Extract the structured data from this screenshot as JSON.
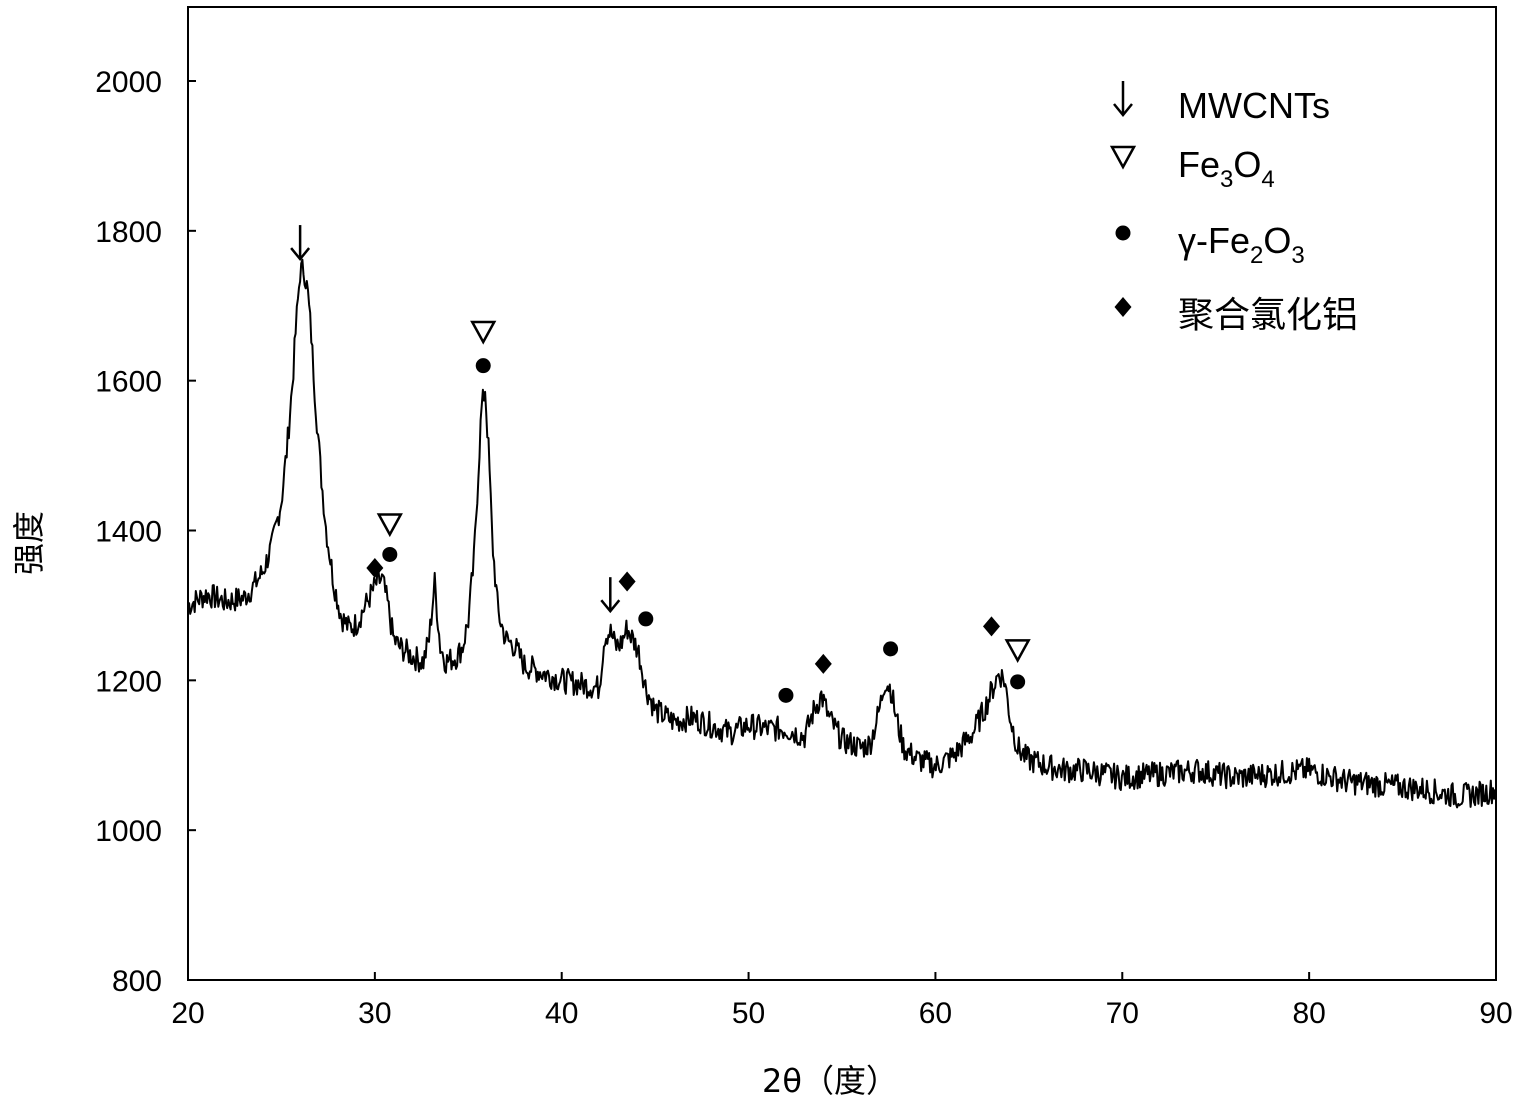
{
  "chart_data": {
    "type": "line",
    "title": "",
    "xlabel": "2θ（度）",
    "ylabel": "强度",
    "xlim": [
      20,
      90
    ],
    "ylim": [
      800,
      2100
    ],
    "xticks": [
      20,
      30,
      40,
      50,
      60,
      70,
      80,
      90
    ],
    "yticks": [
      800,
      1000,
      1200,
      1400,
      1600,
      1800,
      2000
    ],
    "grid": false,
    "legend_position": "top-right",
    "legend": [
      {
        "symbol": "arrow",
        "glyph": "↓",
        "label": "MWCNTs",
        "label_parts": []
      },
      {
        "symbol": "triangle",
        "glyph": "▽",
        "label": "Fe3O4",
        "label_parts": [
          "Fe",
          "3",
          "O",
          "4"
        ]
      },
      {
        "symbol": "circle",
        "glyph": "●",
        "label": "γ-Fe2O3",
        "label_parts": [
          "γ-Fe",
          "2",
          "O",
          "3"
        ]
      },
      {
        "symbol": "diamond",
        "glyph": "◆",
        "label": "聚合氯化铝",
        "label_parts": []
      }
    ],
    "series": [
      {
        "name": "",
        "color": "#000000",
        "x": [
          20,
          21,
          22,
          23,
          23.5,
          24,
          24.5,
          25,
          25.3,
          25.6,
          25.8,
          26,
          26.2,
          26.4,
          26.6,
          26.8,
          27.1,
          27.4,
          27.8,
          28.2,
          28.6,
          29,
          29.4,
          29.8,
          30.1,
          30.4,
          30.7,
          31,
          31.3,
          31.6,
          32,
          32.3,
          32.6,
          32.9,
          33.2,
          33.5,
          33.8,
          34.1,
          34.4,
          34.7,
          35,
          35.3,
          35.5,
          35.7,
          35.9,
          36.1,
          36.3,
          36.6,
          37,
          37.5,
          38,
          39,
          40,
          41,
          42,
          42.3,
          42.6,
          42.9,
          43.2,
          43.5,
          43.8,
          44.1,
          44.5,
          45,
          46,
          47,
          48,
          49,
          50,
          51,
          52,
          53,
          53.5,
          53.9,
          54.3,
          55,
          56,
          56.5,
          57,
          57.3,
          57.6,
          57.9,
          58.3,
          59,
          60,
          61,
          62,
          62.6,
          63,
          63.4,
          63.7,
          64,
          64.4,
          64.9,
          65.5,
          66,
          67,
          68,
          69,
          70,
          72,
          74,
          76,
          78,
          80,
          82,
          84,
          86,
          88,
          89.5,
          90
        ],
        "y": [
          1300,
          1315,
          1305,
          1310,
          1325,
          1345,
          1380,
          1440,
          1510,
          1600,
          1680,
          1745,
          1750,
          1720,
          1660,
          1580,
          1480,
          1400,
          1330,
          1285,
          1270,
          1275,
          1295,
          1315,
          1330,
          1335,
          1300,
          1255,
          1245,
          1240,
          1232,
          1228,
          1225,
          1255,
          1330,
          1245,
          1225,
          1228,
          1232,
          1245,
          1280,
          1360,
          1460,
          1560,
          1590,
          1500,
          1380,
          1290,
          1255,
          1245,
          1220,
          1210,
          1200,
          1195,
          1190,
          1260,
          1265,
          1245,
          1250,
          1270,
          1255,
          1240,
          1190,
          1160,
          1145,
          1150,
          1140,
          1130,
          1140,
          1135,
          1135,
          1125,
          1160,
          1180,
          1150,
          1120,
          1110,
          1115,
          1160,
          1200,
          1190,
          1150,
          1110,
          1095,
          1085,
          1100,
          1130,
          1160,
          1185,
          1210,
          1200,
          1150,
          1110,
          1095,
          1090,
          1085,
          1080,
          1080,
          1075,
          1070,
          1075,
          1080,
          1070,
          1075,
          1080,
          1065,
          1060,
          1055,
          1045,
          1050,
          1055
        ]
      }
    ],
    "annotations": [
      {
        "symbol": "arrow",
        "x": 26.0,
        "y": 1785
      },
      {
        "symbol": "triangle",
        "x": 35.8,
        "y": 1665
      },
      {
        "symbol": "circle",
        "x": 35.8,
        "y": 1620
      },
      {
        "symbol": "diamond",
        "x": 30.0,
        "y": 1350
      },
      {
        "symbol": "circle",
        "x": 30.8,
        "y": 1368
      },
      {
        "symbol": "triangle",
        "x": 30.8,
        "y": 1408
      },
      {
        "symbol": "arrow",
        "x": 42.6,
        "y": 1315
      },
      {
        "symbol": "diamond",
        "x": 43.5,
        "y": 1332
      },
      {
        "symbol": "circle",
        "x": 44.5,
        "y": 1282
      },
      {
        "symbol": "circle",
        "x": 52.0,
        "y": 1180
      },
      {
        "symbol": "diamond",
        "x": 54.0,
        "y": 1222
      },
      {
        "symbol": "circle",
        "x": 57.6,
        "y": 1242
      },
      {
        "symbol": "diamond",
        "x": 63.0,
        "y": 1272
      },
      {
        "symbol": "triangle",
        "x": 64.4,
        "y": 1240
      },
      {
        "symbol": "circle",
        "x": 64.4,
        "y": 1198
      }
    ]
  }
}
